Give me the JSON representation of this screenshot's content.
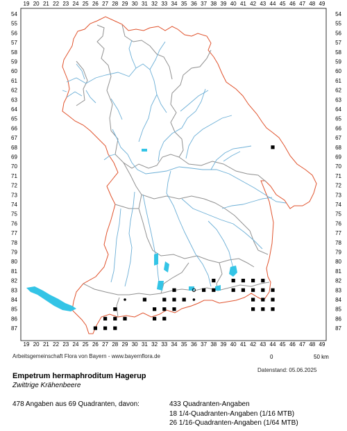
{
  "grid": {
    "columns": [
      "19",
      "20",
      "21",
      "22",
      "23",
      "24",
      "25",
      "26",
      "27",
      "28",
      "29",
      "30",
      "31",
      "32",
      "33",
      "34",
      "35",
      "36",
      "37",
      "38",
      "39",
      "40",
      "41",
      "42",
      "43",
      "44",
      "45",
      "46",
      "47",
      "48",
      "49"
    ],
    "rows": [
      "54",
      "55",
      "56",
      "57",
      "58",
      "59",
      "60",
      "61",
      "62",
      "63",
      "64",
      "65",
      "66",
      "67",
      "68",
      "69",
      "70",
      "71",
      "72",
      "73",
      "74",
      "75",
      "76",
      "77",
      "78",
      "79",
      "80",
      "81",
      "82",
      "83",
      "84",
      "85",
      "86",
      "87"
    ]
  },
  "colors": {
    "state_border": "#e0522c",
    "district_border": "#909090",
    "rivers": "#6aaed6",
    "lakes": "#33c4e6",
    "occurrence": "#000000"
  },
  "occurrences": [
    {
      "col": 44,
      "row": 68
    },
    {
      "col": 38,
      "row": 82
    },
    {
      "col": 40,
      "row": 82
    },
    {
      "col": 41,
      "row": 82
    },
    {
      "col": 42,
      "row": 82
    },
    {
      "col": 43,
      "row": 82
    },
    {
      "col": 34,
      "row": 83
    },
    {
      "col": 36,
      "row": 83,
      "symbol": "open-dot"
    },
    {
      "col": 37,
      "row": 83
    },
    {
      "col": 38,
      "row": 83
    },
    {
      "col": 40,
      "row": 83
    },
    {
      "col": 41,
      "row": 83
    },
    {
      "col": 42,
      "row": 83
    },
    {
      "col": 43,
      "row": 83
    },
    {
      "col": 44,
      "row": 83
    },
    {
      "col": 29,
      "row": 84,
      "symbol": "dot"
    },
    {
      "col": 31,
      "row": 84
    },
    {
      "col": 33,
      "row": 84
    },
    {
      "col": 34,
      "row": 84
    },
    {
      "col": 35,
      "row": 84
    },
    {
      "col": 36,
      "row": 84,
      "symbol": "dot"
    },
    {
      "col": 42,
      "row": 84
    },
    {
      "col": 43,
      "row": 84
    },
    {
      "col": 44,
      "row": 84
    },
    {
      "col": 28,
      "row": 85
    },
    {
      "col": 32,
      "row": 85
    },
    {
      "col": 33,
      "row": 85
    },
    {
      "col": 34,
      "row": 85
    },
    {
      "col": 42,
      "row": 85
    },
    {
      "col": 43,
      "row": 85
    },
    {
      "col": 44,
      "row": 85
    },
    {
      "col": 27,
      "row": 86
    },
    {
      "col": 28,
      "row": 86
    },
    {
      "col": 29,
      "row": 86
    },
    {
      "col": 32,
      "row": 86
    },
    {
      "col": 33,
      "row": 86
    },
    {
      "col": 26,
      "row": 87
    },
    {
      "col": 27,
      "row": 87
    },
    {
      "col": 28,
      "row": 87
    }
  ],
  "credit": "Arbeitsgemeinschaft Flora von Bayern - www.bayernflora.de",
  "datenstand": "Datenstand: 05.06.2025",
  "scale": {
    "start": "0",
    "end": "50 km"
  },
  "species": {
    "scientific": "Empetrum hermaphroditum Hagerup",
    "common": "Zwittrige Krähenbeere"
  },
  "stats": {
    "summary": "478 Angaben aus 69 Quadranten, davon:",
    "quadrant": "433 Quadranten-Angaben",
    "quarter": "18 1/4-Quadranten-Angaben (1/16 MTB)",
    "sixteenth": "26 1/16-Quadranten-Angaben (1/64 MTB)"
  }
}
